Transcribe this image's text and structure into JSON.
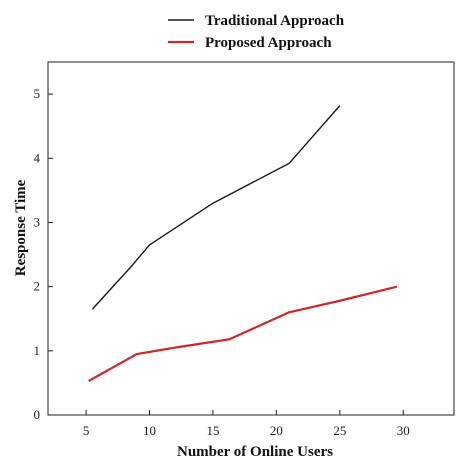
{
  "chart_data": {
    "type": "line",
    "xlabel": "Number of Online Users",
    "ylabel": "Response Time",
    "xlim": [
      2,
      34
    ],
    "ylim": [
      0,
      5.5
    ],
    "x_ticks": [
      5,
      10,
      15,
      20,
      25,
      30
    ],
    "y_ticks": [
      0,
      1,
      2,
      3,
      4,
      5
    ],
    "legend_position": "top",
    "grid": false,
    "series": [
      {
        "name": "Traditional Approach",
        "color": "#1a1a1a",
        "x": [
          5.5,
          8.5,
          10,
          15,
          21,
          25
        ],
        "y": [
          1.65,
          2.3,
          2.65,
          3.3,
          3.92,
          4.82
        ]
      },
      {
        "name": "Proposed Approach",
        "color": "#cc2a2a",
        "x": [
          5.2,
          9,
          12,
          16.3,
          21,
          25,
          29.5
        ],
        "y": [
          0.53,
          0.95,
          1.05,
          1.18,
          1.6,
          1.78,
          2.0
        ]
      }
    ]
  }
}
